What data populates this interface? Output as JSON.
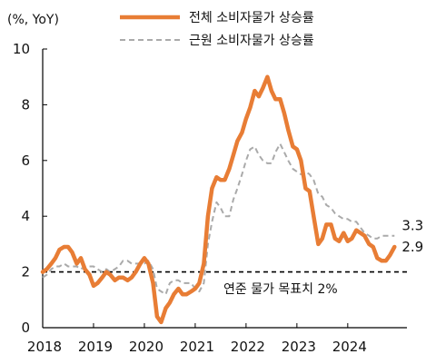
{
  "chart_data": {
    "type": "line",
    "unit_label": "(%, YoY)",
    "xlim": [
      2018.0,
      2024.95
    ],
    "ylim": [
      0,
      10
    ],
    "x_ticks": [
      "2018",
      "2019",
      "2020",
      "2021",
      "2022",
      "2023",
      "2024"
    ],
    "y_ticks": [
      "0",
      "2",
      "4",
      "6",
      "8",
      "10"
    ],
    "grid": false,
    "legend_position": "top",
    "series": [
      {
        "name": "전체 소비자물가 상승률",
        "color": "#E87D35",
        "style": "solid",
        "end_label": "2.9",
        "points": [
          [
            2018.0,
            2.0
          ],
          [
            2018.08,
            2.1
          ],
          [
            2018.17,
            2.3
          ],
          [
            2018.25,
            2.5
          ],
          [
            2018.33,
            2.8
          ],
          [
            2018.42,
            2.9
          ],
          [
            2018.5,
            2.9
          ],
          [
            2018.58,
            2.7
          ],
          [
            2018.67,
            2.3
          ],
          [
            2018.75,
            2.5
          ],
          [
            2018.83,
            2.1
          ],
          [
            2018.92,
            1.9
          ],
          [
            2019.0,
            1.5
          ],
          [
            2019.08,
            1.6
          ],
          [
            2019.17,
            1.8
          ],
          [
            2019.25,
            2.0
          ],
          [
            2019.33,
            1.9
          ],
          [
            2019.42,
            1.7
          ],
          [
            2019.5,
            1.8
          ],
          [
            2019.58,
            1.8
          ],
          [
            2019.67,
            1.7
          ],
          [
            2019.75,
            1.8
          ],
          [
            2019.83,
            2.0
          ],
          [
            2019.92,
            2.3
          ],
          [
            2020.0,
            2.5
          ],
          [
            2020.08,
            2.3
          ],
          [
            2020.17,
            1.6
          ],
          [
            2020.25,
            0.4
          ],
          [
            2020.33,
            0.2
          ],
          [
            2020.42,
            0.7
          ],
          [
            2020.5,
            0.9
          ],
          [
            2020.58,
            1.2
          ],
          [
            2020.67,
            1.4
          ],
          [
            2020.75,
            1.2
          ],
          [
            2020.83,
            1.2
          ],
          [
            2020.92,
            1.3
          ],
          [
            2021.0,
            1.4
          ],
          [
            2021.08,
            1.6
          ],
          [
            2021.17,
            2.3
          ],
          [
            2021.25,
            4.0
          ],
          [
            2021.33,
            5.0
          ],
          [
            2021.42,
            5.4
          ],
          [
            2021.5,
            5.3
          ],
          [
            2021.58,
            5.3
          ],
          [
            2021.67,
            5.7
          ],
          [
            2021.75,
            6.2
          ],
          [
            2021.83,
            6.7
          ],
          [
            2021.92,
            7.0
          ],
          [
            2022.0,
            7.5
          ],
          [
            2022.08,
            7.9
          ],
          [
            2022.17,
            8.5
          ],
          [
            2022.25,
            8.3
          ],
          [
            2022.33,
            8.6
          ],
          [
            2022.42,
            9.0
          ],
          [
            2022.5,
            8.5
          ],
          [
            2022.58,
            8.2
          ],
          [
            2022.67,
            8.2
          ],
          [
            2022.75,
            7.7
          ],
          [
            2022.83,
            7.1
          ],
          [
            2022.92,
            6.5
          ],
          [
            2023.0,
            6.4
          ],
          [
            2023.08,
            6.0
          ],
          [
            2023.17,
            5.0
          ],
          [
            2023.25,
            4.9
          ],
          [
            2023.33,
            4.0
          ],
          [
            2023.42,
            3.0
          ],
          [
            2023.5,
            3.2
          ],
          [
            2023.58,
            3.7
          ],
          [
            2023.67,
            3.7
          ],
          [
            2023.75,
            3.2
          ],
          [
            2023.83,
            3.1
          ],
          [
            2023.92,
            3.4
          ],
          [
            2024.0,
            3.1
          ],
          [
            2024.08,
            3.2
          ],
          [
            2024.17,
            3.5
          ],
          [
            2024.25,
            3.4
          ],
          [
            2024.33,
            3.3
          ],
          [
            2024.42,
            3.0
          ],
          [
            2024.5,
            2.9
          ],
          [
            2024.58,
            2.5
          ],
          [
            2024.67,
            2.4
          ],
          [
            2024.75,
            2.4
          ],
          [
            2024.83,
            2.6
          ],
          [
            2024.92,
            2.9
          ]
        ]
      },
      {
        "name": "근원 소비자물가 상승률",
        "color": "#AAAAAA",
        "style": "dashed",
        "end_label": "3.3",
        "points": [
          [
            2018.0,
            1.8
          ],
          [
            2018.08,
            1.9
          ],
          [
            2018.17,
            2.1
          ],
          [
            2018.25,
            2.2
          ],
          [
            2018.33,
            2.2
          ],
          [
            2018.42,
            2.3
          ],
          [
            2018.5,
            2.2
          ],
          [
            2018.58,
            2.2
          ],
          [
            2018.67,
            2.2
          ],
          [
            2018.75,
            2.1
          ],
          [
            2018.83,
            2.2
          ],
          [
            2018.92,
            2.2
          ],
          [
            2019.0,
            2.2
          ],
          [
            2019.08,
            2.1
          ],
          [
            2019.17,
            2.0
          ],
          [
            2019.25,
            2.1
          ],
          [
            2019.33,
            2.0
          ],
          [
            2019.42,
            2.1
          ],
          [
            2019.5,
            2.2
          ],
          [
            2019.58,
            2.4
          ],
          [
            2019.67,
            2.4
          ],
          [
            2019.75,
            2.3
          ],
          [
            2019.83,
            2.3
          ],
          [
            2019.92,
            2.3
          ],
          [
            2020.0,
            2.3
          ],
          [
            2020.08,
            2.4
          ],
          [
            2020.17,
            2.1
          ],
          [
            2020.25,
            1.4
          ],
          [
            2020.33,
            1.3
          ],
          [
            2020.42,
            1.2
          ],
          [
            2020.5,
            1.6
          ],
          [
            2020.58,
            1.7
          ],
          [
            2020.67,
            1.7
          ],
          [
            2020.75,
            1.6
          ],
          [
            2020.83,
            1.6
          ],
          [
            2020.92,
            1.6
          ],
          [
            2021.0,
            1.4
          ],
          [
            2021.08,
            1.3
          ],
          [
            2021.17,
            1.6
          ],
          [
            2021.25,
            3.0
          ],
          [
            2021.33,
            3.8
          ],
          [
            2021.42,
            4.5
          ],
          [
            2021.5,
            4.3
          ],
          [
            2021.58,
            4.0
          ],
          [
            2021.67,
            4.0
          ],
          [
            2021.75,
            4.6
          ],
          [
            2021.83,
            5.0
          ],
          [
            2021.92,
            5.5
          ],
          [
            2022.0,
            6.0
          ],
          [
            2022.08,
            6.4
          ],
          [
            2022.17,
            6.5
          ],
          [
            2022.25,
            6.2
          ],
          [
            2022.33,
            6.0
          ],
          [
            2022.42,
            5.9
          ],
          [
            2022.5,
            5.9
          ],
          [
            2022.58,
            6.3
          ],
          [
            2022.67,
            6.6
          ],
          [
            2022.75,
            6.3
          ],
          [
            2022.83,
            6.0
          ],
          [
            2022.92,
            5.7
          ],
          [
            2023.0,
            5.6
          ],
          [
            2023.08,
            5.5
          ],
          [
            2023.17,
            5.6
          ],
          [
            2023.25,
            5.5
          ],
          [
            2023.33,
            5.3
          ],
          [
            2023.42,
            4.8
          ],
          [
            2023.5,
            4.7
          ],
          [
            2023.58,
            4.4
          ],
          [
            2023.67,
            4.3
          ],
          [
            2023.75,
            4.1
          ],
          [
            2023.83,
            4.0
          ],
          [
            2023.92,
            3.9
          ],
          [
            2024.0,
            3.9
          ],
          [
            2024.08,
            3.8
          ],
          [
            2024.17,
            3.8
          ],
          [
            2024.25,
            3.6
          ],
          [
            2024.33,
            3.4
          ],
          [
            2024.42,
            3.3
          ],
          [
            2024.5,
            3.2
          ],
          [
            2024.58,
            3.2
          ],
          [
            2024.67,
            3.3
          ],
          [
            2024.75,
            3.3
          ],
          [
            2024.83,
            3.3
          ],
          [
            2024.92,
            3.3
          ]
        ]
      }
    ],
    "reference_line": {
      "y": 2,
      "label": "연준 물가 목표치 2%",
      "style": "dashed",
      "color": "#000000"
    }
  }
}
